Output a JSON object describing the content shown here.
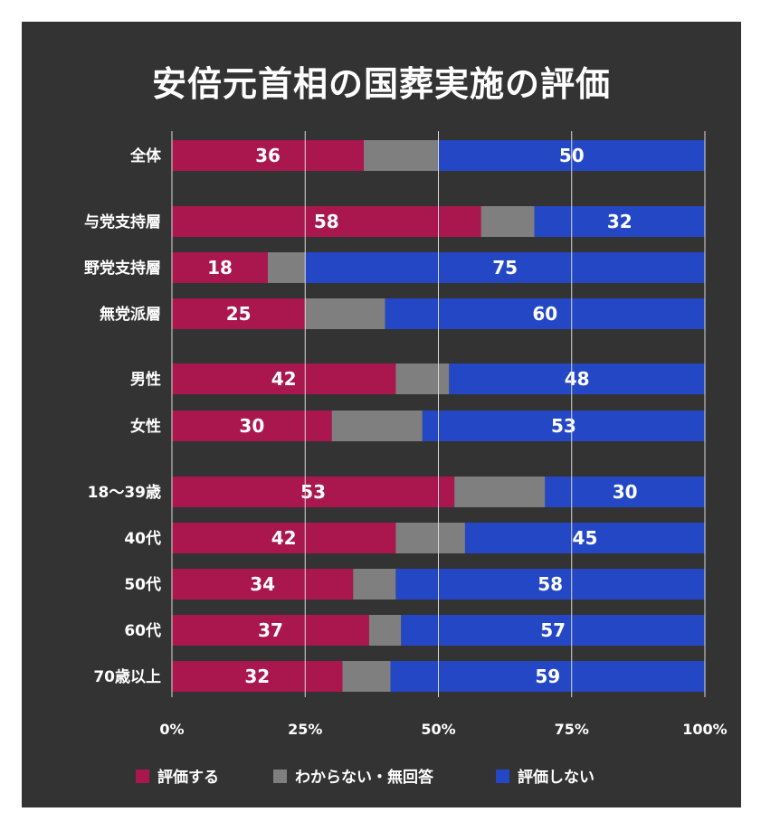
{
  "colors": {
    "background": "#333333",
    "positive": "#a9174e",
    "unknown": "#7f7f7f",
    "negative": "#2448c5",
    "text": "#ffffff"
  },
  "chart_data": {
    "type": "bar",
    "orientation": "horizontal",
    "stacked": true,
    "title": "安倍元首相の国葬実施の評価",
    "xlim": [
      0,
      100
    ],
    "x_ticks": [
      "0%",
      "25%",
      "50%",
      "75%",
      "100%"
    ],
    "grid": false,
    "legend_position": "bottom",
    "groups": [
      [
        0
      ],
      [
        1,
        2,
        3
      ],
      [
        4,
        5
      ],
      [
        6,
        7,
        8,
        9,
        10
      ]
    ],
    "categories": [
      "全体",
      "与党支持層",
      "野党支持層",
      "無党派層",
      "男性",
      "女性",
      "18〜39歳",
      "40代",
      "50代",
      "60代",
      "70歳以上"
    ],
    "series": [
      {
        "name": "評価する",
        "color": "#a9174e",
        "values": [
          36,
          58,
          18,
          25,
          42,
          30,
          53,
          42,
          34,
          37,
          32
        ],
        "labels": true
      },
      {
        "name": "わからない・無回答",
        "color": "#7f7f7f",
        "values": [
          14,
          10,
          7,
          15,
          10,
          17,
          17,
          13,
          8,
          6,
          9
        ],
        "labels": false
      },
      {
        "name": "評価しない",
        "color": "#2448c5",
        "values": [
          50,
          32,
          75,
          60,
          48,
          53,
          30,
          45,
          58,
          57,
          59
        ],
        "labels": true
      }
    ]
  }
}
